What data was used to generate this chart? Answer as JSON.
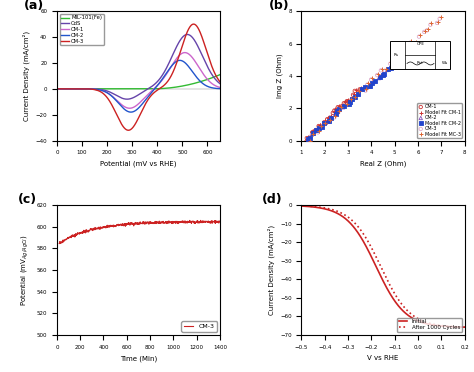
{
  "fig_bg": "#ffffff",
  "panel_a": {
    "label": "(a)",
    "xlabel": "Potential (mV vs RHE)",
    "ylabel": "Current Density (mA/cm²)",
    "xlim": [
      0,
      650
    ],
    "ylim": [
      -40,
      60
    ],
    "xticks": [
      0,
      100,
      200,
      300,
      400,
      500,
      600
    ],
    "yticks": [
      -40,
      -20,
      0,
      20,
      40,
      60
    ],
    "curves": [
      {
        "label": "MIL-101(Fe)",
        "color": "#33bb33",
        "lw": 1.0
      },
      {
        "label": "CdS",
        "color": "#6644aa",
        "lw": 1.0
      },
      {
        "label": "CM-1",
        "color": "#cc66cc",
        "lw": 1.0
      },
      {
        "label": "CM-2",
        "color": "#2255cc",
        "lw": 1.0
      },
      {
        "label": "CM-3",
        "color": "#cc2222",
        "lw": 1.0
      }
    ]
  },
  "panel_b": {
    "label": "(b)",
    "xlabel": "Real Z (Ohm)",
    "ylabel": "Img Z (Ohm)",
    "xlim": [
      1,
      8
    ],
    "ylim": [
      0,
      8
    ],
    "xticks": [
      1,
      2,
      3,
      4,
      5,
      6,
      7,
      8
    ],
    "yticks": [
      0,
      2,
      4,
      6,
      8
    ]
  },
  "panel_c": {
    "label": "(c)",
    "xlabel": "Time (Min)",
    "ylabel": "Potential (mV$_{Ag/AgCl}$)",
    "xlim": [
      0,
      1400
    ],
    "ylim": [
      500,
      620
    ],
    "xticks": [
      0,
      200,
      400,
      600,
      800,
      1000,
      1200,
      1400
    ],
    "yticks": [
      500,
      520,
      540,
      560,
      580,
      600,
      620
    ],
    "curve_color": "#cc2222",
    "legend_label": "CM-3",
    "start_val": 583,
    "end_val": 605,
    "tau": 280
  },
  "panel_d": {
    "label": "(d)",
    "xlabel": "V vs RHE",
    "ylabel": "Current Density (mA/cm²)",
    "xlim": [
      -0.5,
      0.2
    ],
    "ylim": [
      -70,
      0
    ],
    "xticks": [
      -0.5,
      -0.4,
      -0.3,
      -0.2,
      -0.1,
      0.0,
      0.1,
      0.2
    ],
    "yticks": [
      -70,
      -60,
      -50,
      -40,
      -30,
      -20,
      -10,
      0
    ],
    "curves": [
      {
        "label": "Initial",
        "color": "#cc2222",
        "ls": "-",
        "lw": 1.2
      },
      {
        "label": "After 1000 Cycles",
        "color": "#cc2222",
        "ls": ":",
        "lw": 1.2
      }
    ]
  }
}
